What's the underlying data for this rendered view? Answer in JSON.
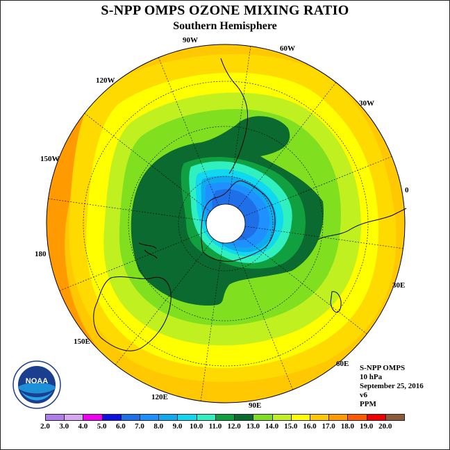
{
  "header": {
    "title": "S-NPP OMPS OZONE MIXING RATIO",
    "subtitle": "Southern Hemisphere"
  },
  "map": {
    "projection": "south polar stereographic",
    "longitude_labels": [
      "90W",
      "60W",
      "30W",
      "0",
      "30E",
      "60E",
      "90E",
      "120E",
      "150E",
      "180",
      "150W",
      "120W"
    ]
  },
  "info": {
    "instrument": "S-NPP OMPS",
    "level": "10 hPa",
    "date": "September 25, 2016",
    "version": "v6",
    "units": "PPM"
  },
  "logo": {
    "text": "NOAA",
    "icon": "noaa-logo-icon"
  },
  "colorbar": {
    "labels": [
      "2.0",
      "3.0",
      "4.0",
      "5.0",
      "6.0",
      "7.0",
      "8.0",
      "9.0",
      "10.0",
      "11.0",
      "12.0",
      "13.0",
      "14.0",
      "15.0",
      "16.0",
      "17.0",
      "18.0",
      "19.0",
      "20.0"
    ],
    "colors": [
      "#b07ee8",
      "#d9a6f2",
      "#f000f0",
      "#1010e0",
      "#1f6fe8",
      "#1e90ff",
      "#10aaf0",
      "#10d8f0",
      "#30f0c0",
      "#10a040",
      "#0a6a30",
      "#80e020",
      "#c0f020",
      "#ffff00",
      "#ffc800",
      "#ff9a00",
      "#ff5a00",
      "#f00000",
      "#8a5a3a"
    ]
  }
}
